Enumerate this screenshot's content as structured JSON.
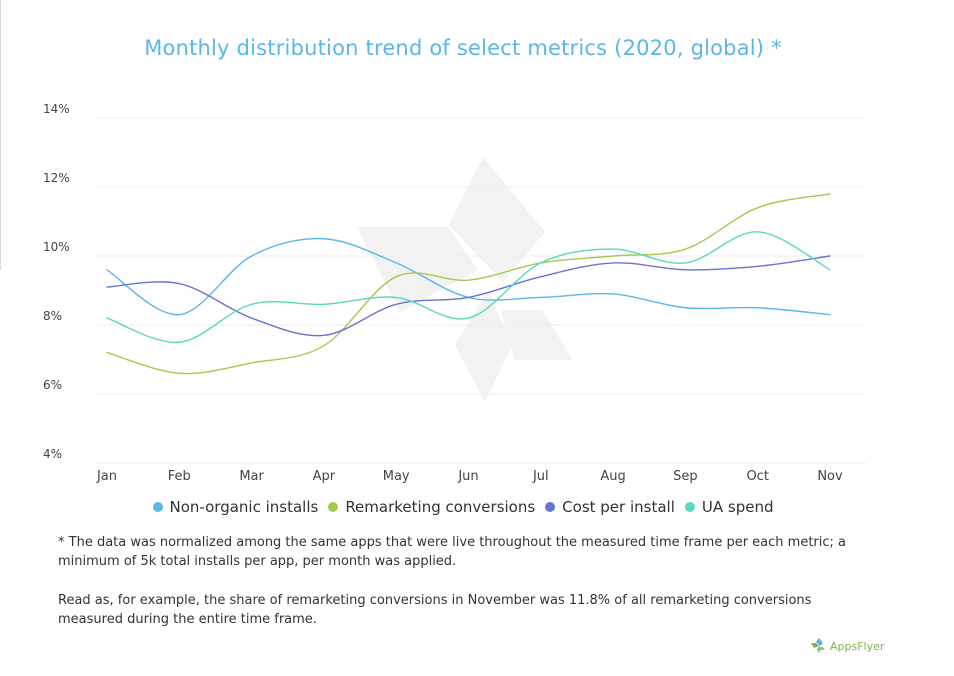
{
  "title": "Monthly distribution trend of select metrics (2020, global) *",
  "colors": {
    "non_organic_installs": "#5bb6ea",
    "remarketing_conversions": "#a6c84f",
    "cost_per_install": "#6a72d0",
    "ua_spend": "#5ad8bf"
  },
  "chart_data": {
    "type": "line",
    "title": "Monthly distribution trend of select metrics (2020, global) *",
    "xlabel": "",
    "ylabel": "",
    "categories": [
      "Jan",
      "Feb",
      "Mar",
      "Apr",
      "May",
      "Jun",
      "Jul",
      "Aug",
      "Sep",
      "Oct",
      "Nov"
    ],
    "y_ticks": [
      "14%",
      "12%",
      "10%",
      "8%",
      "6%",
      "4%"
    ],
    "ylim": [
      4,
      14
    ],
    "grid": true,
    "legend_position": "bottom",
    "series": [
      {
        "name": "Non-organic installs",
        "color_key": "non_organic_installs",
        "values": [
          9.6,
          8.3,
          10.0,
          10.5,
          9.8,
          8.8,
          8.8,
          8.9,
          8.5,
          8.5,
          8.3
        ]
      },
      {
        "name": "Remarketing conversions",
        "color_key": "remarketing_conversions",
        "values": [
          7.2,
          6.6,
          6.9,
          7.4,
          9.4,
          9.3,
          9.8,
          10.0,
          10.2,
          11.4,
          11.8
        ]
      },
      {
        "name": "Cost per install",
        "color_key": "cost_per_install",
        "values": [
          9.1,
          9.2,
          8.2,
          7.7,
          8.6,
          8.8,
          9.4,
          9.8,
          9.6,
          9.7,
          10.0
        ]
      },
      {
        "name": "UA spend",
        "color_key": "ua_spend",
        "values": [
          8.2,
          7.5,
          8.6,
          8.6,
          8.8,
          8.2,
          9.8,
          10.2,
          9.8,
          10.7,
          9.6
        ]
      }
    ]
  },
  "legend": {
    "items": [
      {
        "label": "Non-organic installs"
      },
      {
        "label": "Remarketing conversions"
      },
      {
        "label": "Cost per install"
      },
      {
        "label": "UA spend"
      }
    ]
  },
  "notes": {
    "footnote": "* The data was normalized among the same apps that were live throughout the measured time frame per each metric; a minimum of 5k total installs per app, per month was applied.",
    "read_as": "Read as, for example, the share of remarketing conversions in November was 11.8% of all remarketing conversions measured during the entire time frame."
  },
  "logo": {
    "text": "AppsFlyer"
  }
}
